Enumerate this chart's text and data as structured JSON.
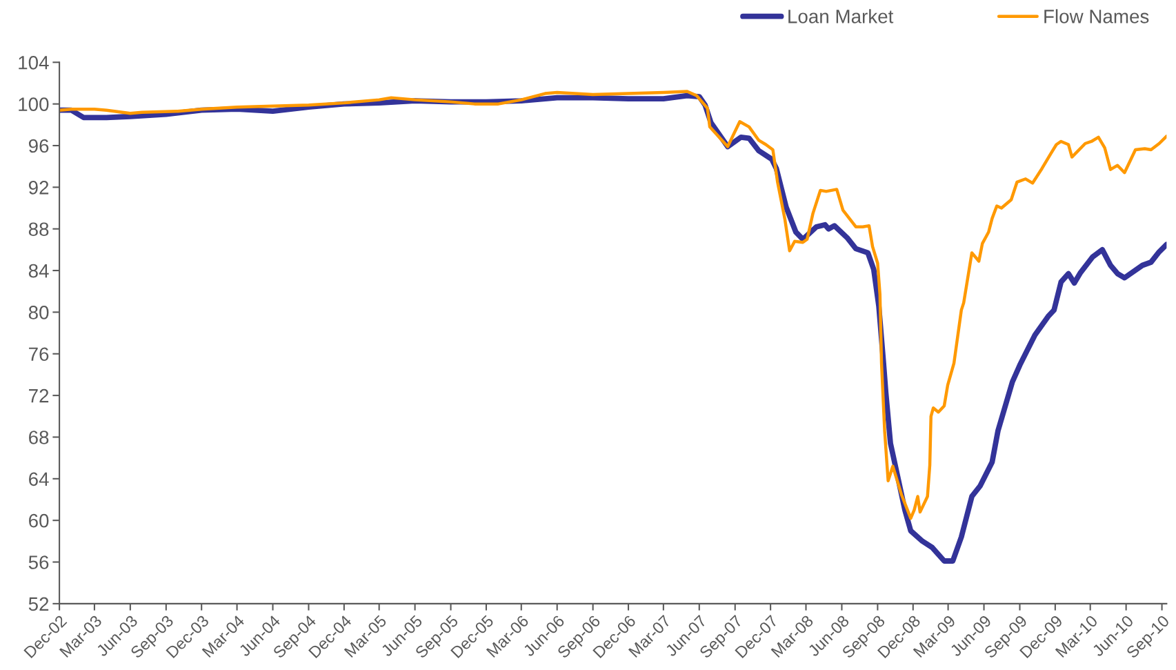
{
  "chart_data": {
    "type": "line",
    "legend": "top right",
    "grid": false,
    "marker": "none",
    "line_style": "solid",
    "xlim": [
      "2002-12-01",
      "2010-09-13"
    ],
    "ylim": [
      52,
      104
    ],
    "yticks": [
      52,
      56,
      60,
      64,
      68,
      72,
      76,
      80,
      84,
      88,
      92,
      96,
      100,
      104
    ],
    "xticks": [
      {
        "value": "2002-12-01",
        "label": "Dec-02"
      },
      {
        "value": "2003-03-01",
        "label": "Mar-03"
      },
      {
        "value": "2003-06-01",
        "label": "Jun-03"
      },
      {
        "value": "2003-09-01",
        "label": "Sep-03"
      },
      {
        "value": "2003-12-01",
        "label": "Dec-03"
      },
      {
        "value": "2004-03-01",
        "label": "Mar-04"
      },
      {
        "value": "2004-06-01",
        "label": "Jun-04"
      },
      {
        "value": "2004-09-01",
        "label": "Sep-04"
      },
      {
        "value": "2004-12-01",
        "label": "Dec-04"
      },
      {
        "value": "2005-03-01",
        "label": "Mar-05"
      },
      {
        "value": "2005-06-01",
        "label": "Jun-05"
      },
      {
        "value": "2005-09-01",
        "label": "Sep-05"
      },
      {
        "value": "2005-12-01",
        "label": "Dec-05"
      },
      {
        "value": "2006-03-01",
        "label": "Mar-06"
      },
      {
        "value": "2006-06-01",
        "label": "Jun-06"
      },
      {
        "value": "2006-09-01",
        "label": "Sep-06"
      },
      {
        "value": "2006-12-01",
        "label": "Dec-06"
      },
      {
        "value": "2007-03-01",
        "label": "Mar-07"
      },
      {
        "value": "2007-06-01",
        "label": "Jun-07"
      },
      {
        "value": "2007-09-01",
        "label": "Sep-07"
      },
      {
        "value": "2007-12-01",
        "label": "Dec-07"
      },
      {
        "value": "2008-03-01",
        "label": "Mar-08"
      },
      {
        "value": "2008-06-01",
        "label": "Jun-08"
      },
      {
        "value": "2008-09-01",
        "label": "Sep-08"
      },
      {
        "value": "2008-12-01",
        "label": "Dec-08"
      },
      {
        "value": "2009-03-01",
        "label": "Mar-09"
      },
      {
        "value": "2009-06-01",
        "label": "Jun-09"
      },
      {
        "value": "2009-09-01",
        "label": "Sep-09"
      },
      {
        "value": "2009-12-01",
        "label": "Dec-09"
      },
      {
        "value": "2010-03-01",
        "label": "Mar-10"
      },
      {
        "value": "2010-06-01",
        "label": "Jun-10"
      },
      {
        "value": "2010-09-01",
        "label": "Sep-10"
      }
    ],
    "series": [
      {
        "name": "Loan Market",
        "color": "#333399",
        "x": [
          "2002-12-01",
          "2003-01-01",
          "2003-02-01",
          "2003-04-01",
          "2003-06-01",
          "2003-09-01",
          "2003-12-01",
          "2004-03-01",
          "2004-06-01",
          "2004-09-01",
          "2004-12-01",
          "2005-03-01",
          "2005-06-01",
          "2005-09-01",
          "2005-12-01",
          "2006-03-01",
          "2006-06-01",
          "2006-09-01",
          "2006-12-01",
          "2007-03-01",
          "2007-05-01",
          "2007-06-01",
          "2007-06-16",
          "2007-07-01",
          "2007-08-13",
          "2007-09-16",
          "2007-10-07",
          "2007-11-01",
          "2007-12-04",
          "2007-12-16",
          "2008-01-10",
          "2008-02-04",
          "2008-02-22",
          "2008-03-28",
          "2008-04-19",
          "2008-04-28",
          "2008-05-13",
          "2008-06-16",
          "2008-07-07",
          "2008-08-07",
          "2008-08-22",
          "2008-09-04",
          "2008-09-16",
          "2008-09-22",
          "2008-10-04",
          "2008-10-22",
          "2008-11-10",
          "2008-11-25",
          "2008-12-25",
          "2009-01-19",
          "2009-02-19",
          "2009-03-13",
          "2009-04-04",
          "2009-05-01",
          "2009-05-22",
          "2009-06-22",
          "2009-07-07",
          "2009-08-13",
          "2009-09-01",
          "2009-09-25",
          "2009-10-10",
          "2009-11-13",
          "2009-11-28",
          "2009-12-16",
          "2010-01-04",
          "2010-01-19",
          "2010-02-04",
          "2010-03-07",
          "2010-04-01",
          "2010-04-22",
          "2010-05-10",
          "2010-05-28",
          "2010-07-13",
          "2010-08-04",
          "2010-08-25",
          "2010-09-13"
        ],
        "values": [
          99.4,
          99.4,
          98.7,
          98.7,
          98.8,
          99.0,
          99.4,
          99.5,
          99.3,
          99.7,
          100.0,
          100.1,
          100.3,
          100.2,
          100.2,
          100.3,
          100.6,
          100.6,
          100.5,
          100.5,
          100.8,
          100.7,
          99.9,
          98.2,
          95.9,
          96.8,
          96.7,
          95.5,
          94.7,
          93.8,
          90.1,
          87.7,
          87.0,
          88.2,
          88.4,
          88.0,
          88.3,
          87.1,
          86.1,
          85.7,
          84.1,
          80.6,
          75.2,
          72.3,
          67.4,
          64.3,
          61.0,
          59.0,
          58.0,
          57.4,
          56.1,
          56.1,
          58.4,
          62.3,
          63.3,
          65.6,
          68.6,
          73.3,
          74.9,
          76.7,
          77.8,
          79.6,
          80.2,
          82.9,
          83.7,
          82.8,
          83.8,
          85.3,
          86.0,
          84.5,
          83.7,
          83.3,
          84.5,
          84.8,
          85.8,
          86.5
        ]
      },
      {
        "name": "Flow Names",
        "color": "#ff9900",
        "x": [
          "2002-12-01",
          "2003-01-01",
          "2003-03-01",
          "2003-04-01",
          "2003-06-01",
          "2003-07-01",
          "2003-10-01",
          "2003-12-01",
          "2004-03-01",
          "2004-06-01",
          "2004-09-01",
          "2004-12-01",
          "2005-03-01",
          "2005-04-01",
          "2005-06-01",
          "2005-09-01",
          "2005-11-01",
          "2006-01-01",
          "2006-03-01",
          "2006-05-01",
          "2006-06-01",
          "2006-09-01",
          "2006-12-01",
          "2007-03-01",
          "2007-05-01",
          "2007-05-25",
          "2007-06-22",
          "2007-06-28",
          "2007-08-13",
          "2007-09-13",
          "2007-10-07",
          "2007-11-01",
          "2007-11-19",
          "2007-12-07",
          "2007-12-19",
          "2008-01-07",
          "2008-01-19",
          "2008-02-01",
          "2008-02-22",
          "2008-03-04",
          "2008-03-19",
          "2008-04-07",
          "2008-04-22",
          "2008-05-19",
          "2008-06-04",
          "2008-07-07",
          "2008-07-25",
          "2008-08-10",
          "2008-08-19",
          "2008-09-01",
          "2008-09-07",
          "2008-09-11",
          "2008-09-19",
          "2008-09-28",
          "2008-10-10",
          "2008-11-01",
          "2008-11-25",
          "2008-12-04",
          "2008-12-13",
          "2008-12-19",
          "2009-01-07",
          "2009-01-13",
          "2009-01-16",
          "2009-01-22",
          "2009-02-04",
          "2009-02-19",
          "2009-02-28",
          "2009-03-16",
          "2009-04-04",
          "2009-04-10",
          "2009-05-01",
          "2009-05-19",
          "2009-05-28",
          "2009-06-13",
          "2009-06-22",
          "2009-07-04",
          "2009-07-16",
          "2009-08-10",
          "2009-08-25",
          "2009-09-16",
          "2009-10-04",
          "2009-10-28",
          "2009-11-16",
          "2009-12-04",
          "2009-12-16",
          "2010-01-04",
          "2010-01-13",
          "2010-02-16",
          "2010-03-04",
          "2010-03-22",
          "2010-04-07",
          "2010-04-22",
          "2010-05-10",
          "2010-05-28",
          "2010-06-25",
          "2010-07-19",
          "2010-08-04",
          "2010-08-25",
          "2010-09-13"
        ],
        "values": [
          99.4,
          99.5,
          99.5,
          99.4,
          99.1,
          99.2,
          99.3,
          99.5,
          99.7,
          99.8,
          99.9,
          100.1,
          100.4,
          100.6,
          100.4,
          100.2,
          100.0,
          100.0,
          100.4,
          101.0,
          101.1,
          100.9,
          101.0,
          101.1,
          101.2,
          100.8,
          99.6,
          97.8,
          95.9,
          98.3,
          97.8,
          96.5,
          96.1,
          95.6,
          92.5,
          88.9,
          85.9,
          86.8,
          86.7,
          87.0,
          89.5,
          91.7,
          91.6,
          91.8,
          89.8,
          88.2,
          88.2,
          88.3,
          86.3,
          84.7,
          81.7,
          75.1,
          68.6,
          63.8,
          65.2,
          62.5,
          60.2,
          61.0,
          62.3,
          60.8,
          62.3,
          65.3,
          70.0,
          70.8,
          70.4,
          71.0,
          73.0,
          75.1,
          80.2,
          80.9,
          85.7,
          84.9,
          86.6,
          87.7,
          89.0,
          90.2,
          90.0,
          90.8,
          92.5,
          92.8,
          92.4,
          93.8,
          95.0,
          96.1,
          96.4,
          96.1,
          94.9,
          96.2,
          96.4,
          96.8,
          95.8,
          93.7,
          94.1,
          93.4,
          95.6,
          95.7,
          95.6,
          96.2,
          96.9
        ]
      }
    ]
  }
}
